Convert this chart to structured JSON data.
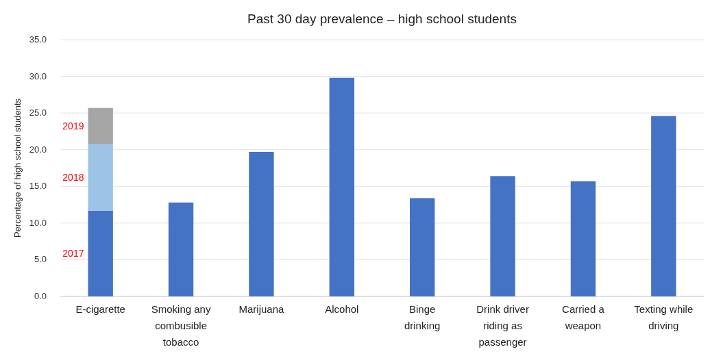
{
  "chart_data": {
    "type": "bar",
    "title": "Past 30 day prevalence – high school students",
    "ylabel": "Percentage of high school students",
    "categories": [
      "E-cigarette",
      "Smoking any combusible tobacco",
      "Marijuana",
      "Alcohol",
      "Binge drinking",
      "Drink driver riding as passenger",
      "Carried a weapon",
      "Texting while driving"
    ],
    "stacked": true,
    "series": [
      {
        "name": "2017",
        "color": "#4472c4",
        "values": [
          11.7,
          12.8,
          19.7,
          29.8,
          13.4,
          16.4,
          15.7,
          24.6
        ]
      },
      {
        "name": "2018",
        "color": "#9dc3e6",
        "values": [
          9.1,
          null,
          null,
          null,
          null,
          null,
          null,
          null
        ]
      },
      {
        "name": "2019",
        "color": "#a5a5a5",
        "values": [
          4.9,
          null,
          null,
          null,
          null,
          null,
          null,
          null
        ]
      }
    ],
    "ylim": [
      0,
      35
    ],
    "yticks": [
      {
        "value": 0,
        "label": "0.0"
      },
      {
        "value": 5,
        "label": "5.0"
      },
      {
        "value": 10,
        "label": "10.0"
      },
      {
        "value": 15,
        "label": "15.0"
      },
      {
        "value": 20,
        "label": "20.0"
      },
      {
        "value": 25,
        "label": "25.0"
      },
      {
        "value": 30,
        "label": "30.0"
      },
      {
        "value": 35,
        "label": "35.0"
      }
    ],
    "grid": "y",
    "legend": false
  }
}
